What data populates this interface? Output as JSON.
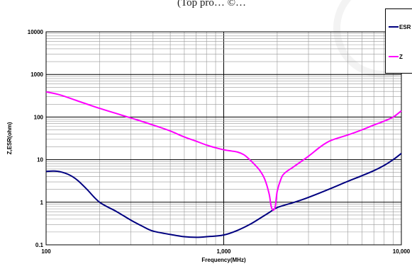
{
  "header": {
    "text": "(Top pro… ©…"
  },
  "chart_data": {
    "type": "line",
    "xlabel": "Frequency(MHz)",
    "ylabel": "Z,ESR(ohm)",
    "x_scale": "log",
    "y_scale": "log",
    "xlim": [
      100,
      10000
    ],
    "ylim": [
      0.1,
      10000
    ],
    "x_ticks": [
      {
        "value": 100,
        "label": "100"
      },
      {
        "value": 1000,
        "label": "1,000"
      },
      {
        "value": 10000,
        "label": "10,000"
      }
    ],
    "y_ticks": [
      {
        "value": 0.1,
        "label": "0.1"
      },
      {
        "value": 1,
        "label": "1"
      },
      {
        "value": 10,
        "label": "10"
      },
      {
        "value": 100,
        "label": "100"
      },
      {
        "value": 1000,
        "label": "1000"
      },
      {
        "value": 10000,
        "label": "10000"
      }
    ],
    "grid": true,
    "legend_position": "top-right",
    "series": [
      {
        "name": "ESR",
        "color": "#000080",
        "points": [
          [
            100,
            5.3
          ],
          [
            110,
            5.4
          ],
          [
            120,
            5.2
          ],
          [
            135,
            4.4
          ],
          [
            150,
            3.3
          ],
          [
            170,
            2.0
          ],
          [
            200,
            1.0
          ],
          [
            250,
            0.6
          ],
          [
            300,
            0.38
          ],
          [
            350,
            0.27
          ],
          [
            400,
            0.21
          ],
          [
            500,
            0.175
          ],
          [
            600,
            0.155
          ],
          [
            700,
            0.15
          ],
          [
            800,
            0.155
          ],
          [
            1000,
            0.17
          ],
          [
            1200,
            0.22
          ],
          [
            1400,
            0.3
          ],
          [
            1600,
            0.42
          ],
          [
            1800,
            0.57
          ],
          [
            2000,
            0.75
          ],
          [
            2500,
            1.0
          ],
          [
            3000,
            1.3
          ],
          [
            4000,
            2.1
          ],
          [
            5000,
            3.1
          ],
          [
            6000,
            4.2
          ],
          [
            7000,
            5.5
          ],
          [
            8000,
            7.3
          ],
          [
            9000,
            10
          ],
          [
            10000,
            14
          ]
        ]
      },
      {
        "name": "Z",
        "color": "#ff00ff",
        "points": [
          [
            100,
            390
          ],
          [
            120,
            330
          ],
          [
            150,
            240
          ],
          [
            200,
            160
          ],
          [
            250,
            120
          ],
          [
            300,
            95
          ],
          [
            400,
            65
          ],
          [
            500,
            47
          ],
          [
            600,
            34
          ],
          [
            700,
            27
          ],
          [
            800,
            22
          ],
          [
            900,
            19
          ],
          [
            1000,
            17
          ],
          [
            1100,
            16
          ],
          [
            1200,
            15
          ],
          [
            1300,
            13
          ],
          [
            1400,
            10
          ],
          [
            1500,
            7.5
          ],
          [
            1600,
            5.5
          ],
          [
            1700,
            3.5
          ],
          [
            1800,
            1.6
          ],
          [
            1850,
            0.8
          ],
          [
            1900,
            0.65
          ],
          [
            1950,
            0.8
          ],
          [
            2000,
            1.8
          ],
          [
            2100,
            3.5
          ],
          [
            2200,
            4.8
          ],
          [
            2500,
            7
          ],
          [
            3000,
            12
          ],
          [
            3500,
            20
          ],
          [
            4000,
            28
          ],
          [
            5000,
            38
          ],
          [
            6000,
            50
          ],
          [
            7000,
            65
          ],
          [
            8000,
            80
          ],
          [
            9000,
            100
          ],
          [
            10000,
            140
          ]
        ]
      }
    ]
  }
}
